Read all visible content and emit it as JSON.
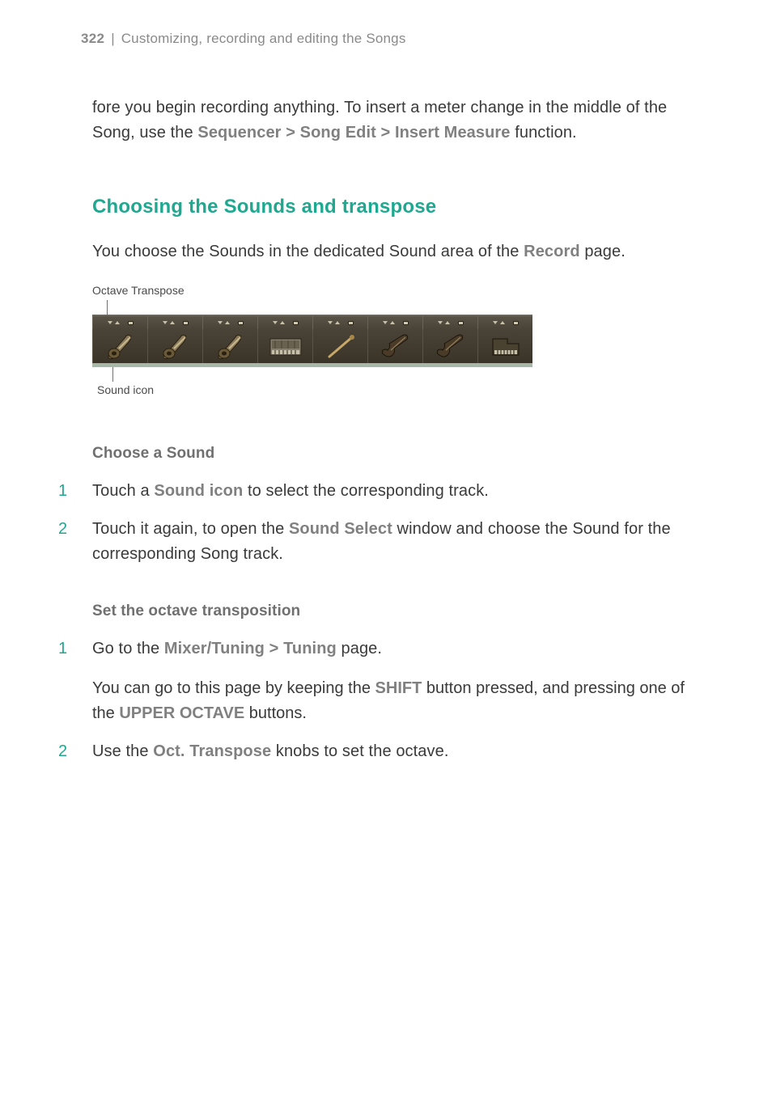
{
  "header": {
    "page_number": "322",
    "divider": "|",
    "title": "Customizing, recording and editing the Songs"
  },
  "intro": {
    "text_before": "fore you begin recording anything. To insert a meter change in the middle of the Song, use the ",
    "path": "Sequencer > Song Edit > Insert Measure",
    "text_after": " function."
  },
  "section_title": "Choosing the Sounds and transpose",
  "section_body": {
    "before": "You choose the Sounds in the dedicated Sound area of the ",
    "bold": "Record",
    "after": " page."
  },
  "figure": {
    "label_top": "Octave Transpose",
    "label_bottom": "Sound icon",
    "slots": [
      {
        "type": "guitar"
      },
      {
        "type": "guitar"
      },
      {
        "type": "guitar"
      },
      {
        "type": "organ"
      },
      {
        "type": "stick"
      },
      {
        "type": "violin"
      },
      {
        "type": "violin"
      },
      {
        "type": "piano"
      }
    ]
  },
  "choose_sound": {
    "heading": "Choose a Sound",
    "item1": {
      "num": "1",
      "before": "Touch a ",
      "bold": "Sound icon",
      "after": " to select the corresponding track."
    },
    "item2": {
      "num": "2",
      "before": "Touch it again, to open the ",
      "bold": "Sound Select",
      "after": " window and choose the Sound for the corresponding Song track."
    }
  },
  "set_octave": {
    "heading": "Set the octave transposition",
    "item1": {
      "num": "1",
      "before": "Go to the ",
      "bold": "Mixer/Tuning > Tuning",
      "after": " page."
    },
    "para": {
      "before": "You can go to this page by keeping the ",
      "bold1": "SHIFT",
      "mid": " button pressed, and pressing one of the ",
      "bold2": "UPPER OCTAVE",
      "after": " buttons."
    },
    "item2": {
      "num": "2",
      "before": "Use the ",
      "bold": "Oct. Transpose",
      "after": " knobs to set the octave."
    }
  },
  "colors": {
    "accent": "#1fa890",
    "text": "#3a3a3a",
    "muted": "#808080",
    "header_gray": "#8a8a8a"
  }
}
